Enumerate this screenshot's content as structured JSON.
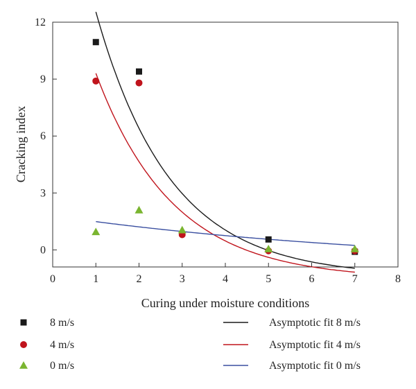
{
  "chart_data": {
    "type": "scatter",
    "xlabel": "Curing under moisture conditions",
    "ylabel": "Cracking index",
    "xlim": [
      0,
      8
    ],
    "ylim": [
      -0.9,
      12
    ],
    "x_ticks": [
      "0",
      "1",
      "2",
      "3",
      "4",
      "5",
      "6",
      "7",
      "8"
    ],
    "y_ticks": [
      "0",
      "3",
      "6",
      "9",
      "12"
    ],
    "grid": false,
    "legend_position": "bottom",
    "series": [
      {
        "name": "8 m/s",
        "marker": "square",
        "color": "#1a1a1a",
        "points": [
          [
            1,
            10.95
          ],
          [
            2,
            9.4
          ],
          [
            5,
            0.55
          ],
          [
            7,
            -0.1
          ]
        ]
      },
      {
        "name": "4 m/s",
        "marker": "circle",
        "color": "#c0141c",
        "points": [
          [
            1,
            8.9
          ],
          [
            2,
            8.8
          ],
          [
            3,
            0.8
          ],
          [
            5,
            -0.05
          ],
          [
            7,
            -0.05
          ]
        ]
      },
      {
        "name": "0 m/s",
        "marker": "triangle",
        "color": "#7ab530",
        "points": [
          [
            1,
            0.95
          ],
          [
            2,
            2.1
          ],
          [
            3,
            1.05
          ],
          [
            5,
            0.05
          ],
          [
            7,
            0.05
          ]
        ]
      }
    ],
    "fits": [
      {
        "name": "Asymptotic fit 8 m/s",
        "color": "#1a1a1a",
        "a": -1.4,
        "b": 24.9,
        "c": 0.58,
        "x_range": [
          1,
          7
        ]
      },
      {
        "name": "Asymptotic fit 4 m/s",
        "color": "#c0141c",
        "a": -1.55,
        "b": 19.0,
        "c": 0.56,
        "x_range": [
          1,
          7
        ]
      },
      {
        "name": "Asymptotic fit 0 m/s",
        "color": "#3a4fa0",
        "a": -0.95,
        "b": 2.75,
        "c": 0.12,
        "x_range": [
          1,
          7
        ]
      }
    ]
  }
}
